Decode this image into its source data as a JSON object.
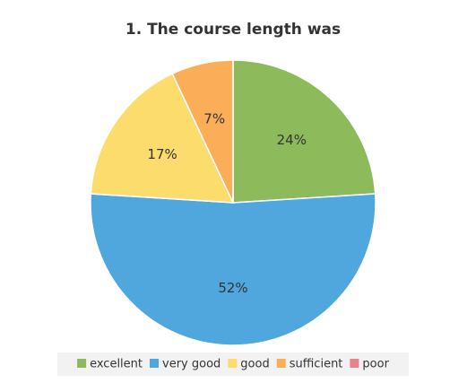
{
  "chart_data": {
    "type": "pie",
    "title": "1. The course length was",
    "categories": [
      "excellent",
      "very good",
      "good",
      "sufficient",
      "poor"
    ],
    "values": [
      24,
      52,
      17,
      7,
      0
    ],
    "value_labels": [
      "24%",
      "52%",
      "17%",
      "7%",
      null
    ],
    "colors": [
      "#8dbb5c",
      "#4fa7de",
      "#fcdc6c",
      "#fbad58",
      "#e8838a"
    ],
    "legend": "bottom"
  }
}
